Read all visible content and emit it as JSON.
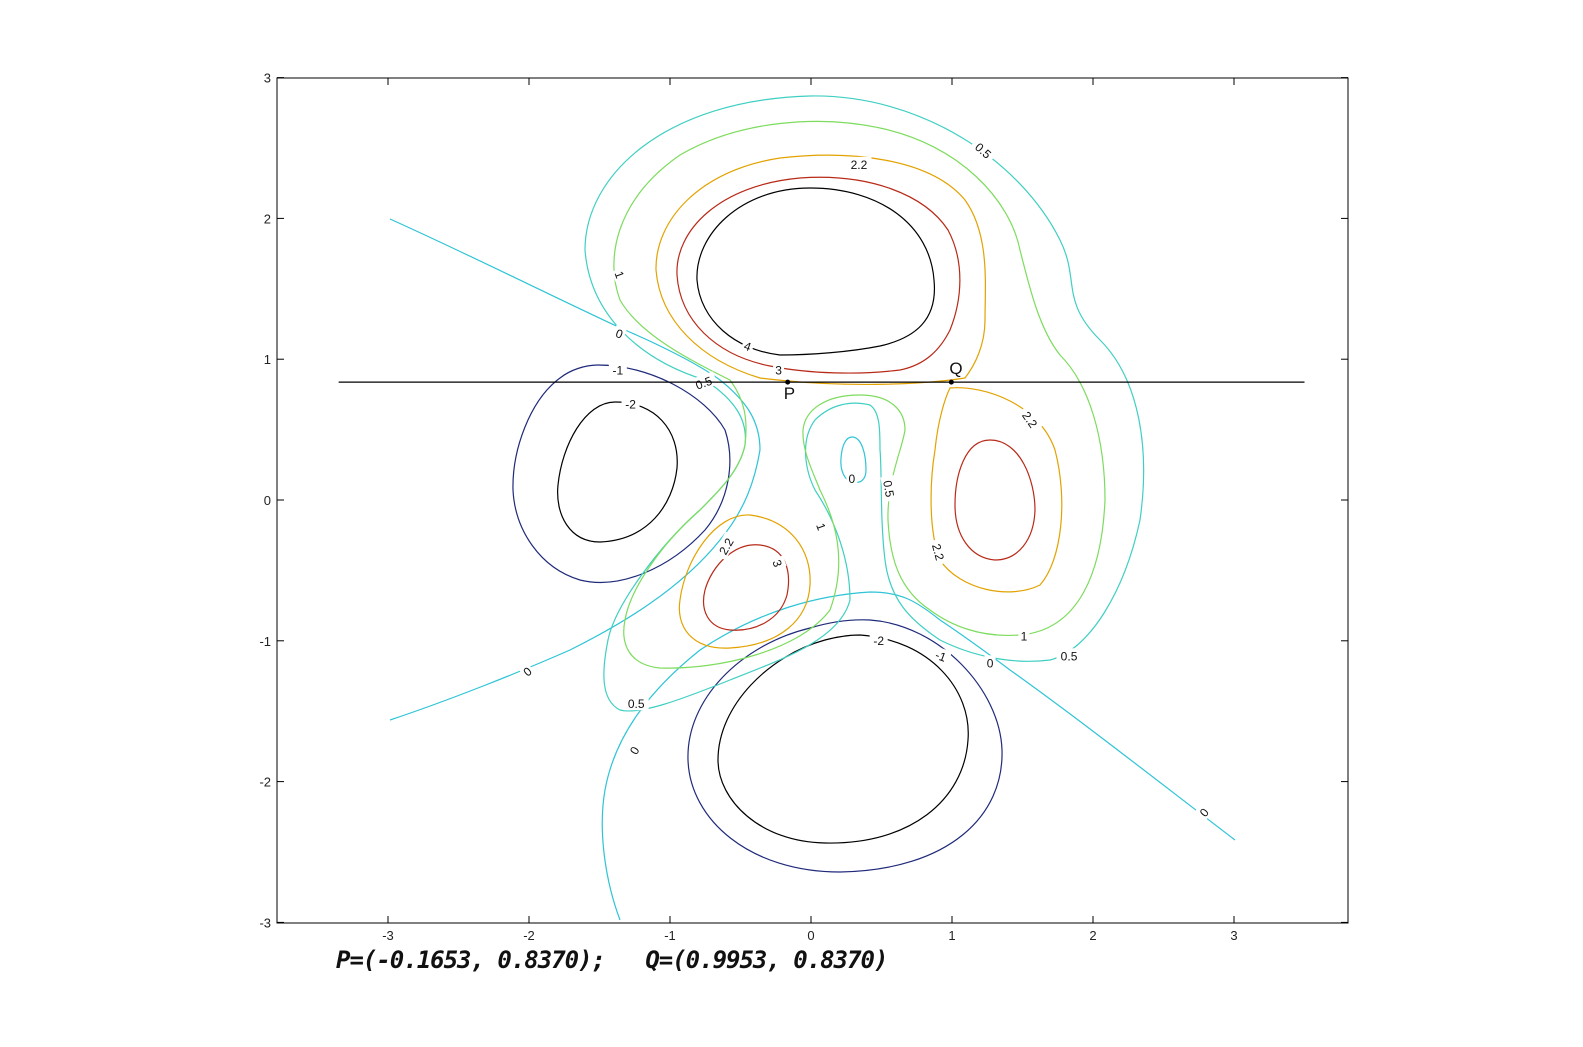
{
  "chart_data": {
    "type": "contour",
    "title": "",
    "xlabel": "",
    "ylabel": "",
    "xlim": [
      -3.8,
      3.8
    ],
    "ylim": [
      -3,
      3
    ],
    "grid": false,
    "x_ticks": [
      "-3",
      "-2",
      "-1",
      "0",
      "1",
      "2",
      "3"
    ],
    "y_ticks": [
      "-3",
      "-2",
      "-1",
      "0",
      "1",
      "2",
      "3"
    ],
    "contour_levels": [
      -2,
      -1,
      0,
      0.5,
      1,
      2.2,
      3,
      4
    ],
    "level_colors": {
      "-2": "#000000",
      "-1": "#1f2a7a",
      "0": "#2ec4d6",
      "0.5": "#3fcfc2",
      "1": "#7ddc5e",
      "2.2": "#e3a200",
      "3": "#b82a18",
      "4": "#000000"
    },
    "contour_labels": [
      {
        "text": "0.5",
        "x": 1.22,
        "y": 2.48,
        "rot": 42
      },
      {
        "text": "2.2",
        "x": 0.34,
        "y": 2.38,
        "rot": 0
      },
      {
        "text": "1",
        "x": -1.36,
        "y": 1.6,
        "rot": 70
      },
      {
        "text": "0",
        "x": -1.36,
        "y": 1.18,
        "rot": 20
      },
      {
        "text": "4",
        "x": -0.45,
        "y": 1.09,
        "rot": 20
      },
      {
        "text": "3",
        "x": -0.23,
        "y": 0.92,
        "rot": 0
      },
      {
        "text": "-1",
        "x": -1.37,
        "y": 0.92,
        "rot": 0
      },
      {
        "text": "0.5",
        "x": -0.76,
        "y": 0.83,
        "rot": -20
      },
      {
        "text": "-2",
        "x": -1.28,
        "y": 0.68,
        "rot": 0
      },
      {
        "text": "2.2",
        "x": 1.55,
        "y": 0.57,
        "rot": 55
      },
      {
        "text": "0",
        "x": 0.29,
        "y": 0.15,
        "rot": 0
      },
      {
        "text": "0.5",
        "x": 0.55,
        "y": 0.08,
        "rot": 80
      },
      {
        "text": "1",
        "x": 0.07,
        "y": -0.19,
        "rot": 70
      },
      {
        "text": "2.2",
        "x": -0.6,
        "y": -0.33,
        "rot": -60
      },
      {
        "text": "3",
        "x": -0.24,
        "y": -0.45,
        "rot": 70
      },
      {
        "text": "2.2",
        "x": 0.9,
        "y": -0.37,
        "rot": 75
      },
      {
        "text": "-2",
        "x": 0.48,
        "y": -1.0,
        "rot": 0
      },
      {
        "text": "-1",
        "x": 0.92,
        "y": -1.11,
        "rot": 20
      },
      {
        "text": "1",
        "x": 1.51,
        "y": -0.97,
        "rot": 0
      },
      {
        "text": "0",
        "x": 1.27,
        "y": -1.16,
        "rot": 0
      },
      {
        "text": "0.5",
        "x": 1.83,
        "y": -1.11,
        "rot": 0
      },
      {
        "text": "0",
        "x": -2.01,
        "y": -1.22,
        "rot": -40
      },
      {
        "text": "0.5",
        "x": -1.24,
        "y": -1.45,
        "rot": 0
      },
      {
        "text": "0",
        "x": -1.25,
        "y": -1.78,
        "rot": -60
      },
      {
        "text": "0",
        "x": 2.79,
        "y": -2.22,
        "rot": -50
      }
    ],
    "horizontal_line": {
      "y": 0.837,
      "x_from": -3.35,
      "x_to": 3.5
    },
    "points": [
      {
        "name": "P",
        "x": -0.1653,
        "y": 0.837
      },
      {
        "name": "Q",
        "x": 0.9953,
        "y": 0.837
      }
    ]
  },
  "caption": "P=(-0.1653, 0.8370);   Q=(0.9953, 0.8370)"
}
